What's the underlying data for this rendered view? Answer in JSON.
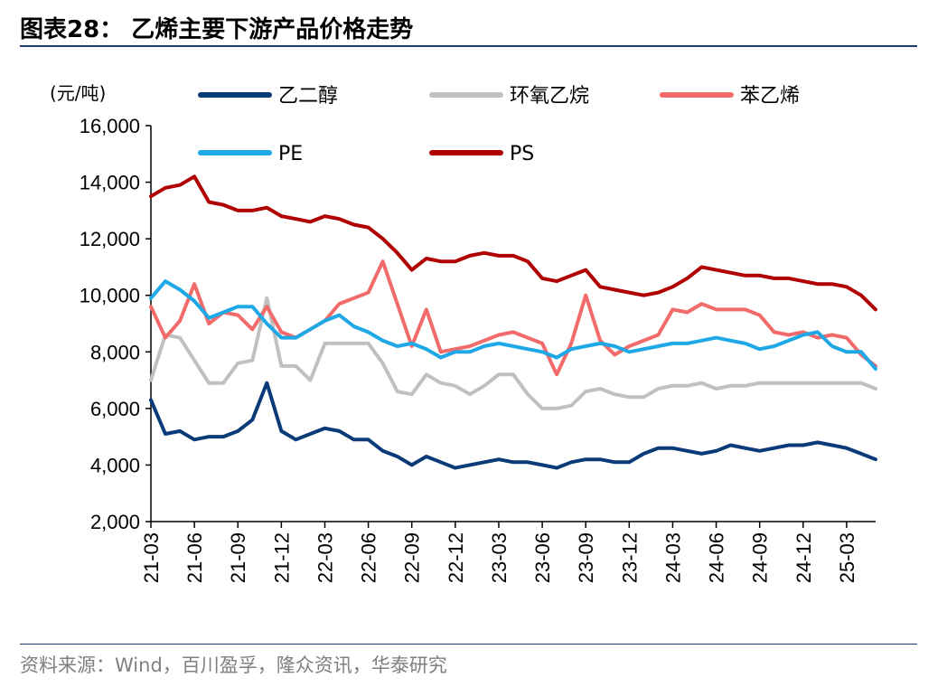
{
  "title": "图表28： 乙烯主要下游产品价格走势",
  "source": "资料来源：Wind，百川盈孚，隆众资讯，华泰研究",
  "colors": {
    "乙二醇": "#0b3a78",
    "环氧乙烷": "#c0c0c0",
    "苯乙烯": "#f26b6b",
    "PE": "#1fa8e6",
    "PS": "#b00000",
    "rule": "#1f3a6b"
  },
  "chart_data": {
    "type": "line",
    "ylabel": "(元/吨)",
    "ylim": [
      2000,
      16000
    ],
    "yticks": [
      "2,000",
      "4,000",
      "6,000",
      "8,000",
      "10,000",
      "12,000",
      "14,000",
      "16,000"
    ],
    "xtick_labels": [
      "21-03",
      "21-06",
      "21-09",
      "21-12",
      "22-03",
      "22-06",
      "22-09",
      "22-12",
      "23-03",
      "23-06",
      "23-09",
      "23-12",
      "24-03",
      "24-06",
      "24-09",
      "24-12",
      "25-03"
    ],
    "x": [
      "21-03",
      "21-04",
      "21-05",
      "21-06",
      "21-07",
      "21-08",
      "21-09",
      "21-10",
      "21-11",
      "21-12",
      "22-01",
      "22-02",
      "22-03",
      "22-04",
      "22-05",
      "22-06",
      "22-07",
      "22-08",
      "22-09",
      "22-10",
      "22-11",
      "22-12",
      "23-01",
      "23-02",
      "23-03",
      "23-04",
      "23-05",
      "23-06",
      "23-07",
      "23-08",
      "23-09",
      "23-10",
      "23-11",
      "23-12",
      "24-01",
      "24-02",
      "24-03",
      "24-04",
      "24-05",
      "24-06",
      "24-07",
      "24-08",
      "24-09",
      "24-10",
      "24-11",
      "24-12",
      "25-01",
      "25-02",
      "25-03",
      "25-04",
      "25-05"
    ],
    "grid": false,
    "legend_position": "top",
    "series": [
      {
        "name": "乙二醇",
        "values": [
          6300,
          5100,
          5200,
          4900,
          5000,
          5000,
          5200,
          5600,
          6900,
          5200,
          4900,
          5100,
          5300,
          5200,
          4900,
          4900,
          4500,
          4300,
          4000,
          4300,
          4100,
          3900,
          4000,
          4100,
          4200,
          4100,
          4100,
          4000,
          3900,
          4100,
          4200,
          4200,
          4100,
          4100,
          4400,
          4600,
          4600,
          4500,
          4400,
          4500,
          4700,
          4600,
          4500,
          4600,
          4700,
          4700,
          4800,
          4700,
          4600,
          4400,
          4200
        ]
      },
      {
        "name": "环氧乙烷",
        "values": [
          7000,
          8600,
          8500,
          7700,
          6900,
          6900,
          7600,
          7700,
          9900,
          7500,
          7500,
          7000,
          8300,
          8300,
          8300,
          8300,
          7600,
          6600,
          6500,
          7200,
          6900,
          6800,
          6500,
          6800,
          7200,
          7200,
          6500,
          6000,
          6000,
          6100,
          6600,
          6700,
          6500,
          6400,
          6400,
          6700,
          6800,
          6800,
          6900,
          6700,
          6800,
          6800,
          6900,
          6900,
          6900,
          6900,
          6900,
          6900,
          6900,
          6900,
          6700
        ]
      },
      {
        "name": "苯乙烯",
        "values": [
          9600,
          8500,
          9100,
          10400,
          9000,
          9400,
          9300,
          8800,
          9600,
          8700,
          8500,
          8800,
          9100,
          9700,
          9900,
          10100,
          11200,
          9700,
          8200,
          9500,
          8000,
          8100,
          8200,
          8400,
          8600,
          8700,
          8500,
          8300,
          7200,
          8300,
          10000,
          8400,
          7900,
          8200,
          8400,
          8600,
          9500,
          9400,
          9700,
          9500,
          9500,
          9500,
          9300,
          8700,
          8600,
          8700,
          8500,
          8600,
          8500,
          7900,
          7500
        ]
      },
      {
        "name": "PE",
        "values": [
          9900,
          10500,
          10200,
          9800,
          9200,
          9400,
          9600,
          9600,
          9000,
          8500,
          8500,
          8800,
          9100,
          9300,
          8900,
          8700,
          8400,
          8200,
          8300,
          8100,
          7800,
          8000,
          8000,
          8200,
          8300,
          8200,
          8100,
          8000,
          7800,
          8100,
          8200,
          8300,
          8200,
          8000,
          8100,
          8200,
          8300,
          8300,
          8400,
          8500,
          8400,
          8300,
          8100,
          8200,
          8400,
          8600,
          8700,
          8200,
          8000,
          8000,
          7400
        ]
      },
      {
        "name": "PS",
        "values": [
          13500,
          13800,
          13900,
          14200,
          13300,
          13200,
          13000,
          13000,
          13100,
          12800,
          12700,
          12600,
          12800,
          12700,
          12500,
          12400,
          12000,
          11500,
          10900,
          11300,
          11200,
          11200,
          11400,
          11500,
          11400,
          11400,
          11200,
          10600,
          10500,
          10700,
          10900,
          10300,
          10200,
          10100,
          10000,
          10100,
          10300,
          10600,
          11000,
          10900,
          10800,
          10700,
          10700,
          10600,
          10600,
          10500,
          10400,
          10400,
          10300,
          10000,
          9500
        ]
      }
    ]
  }
}
